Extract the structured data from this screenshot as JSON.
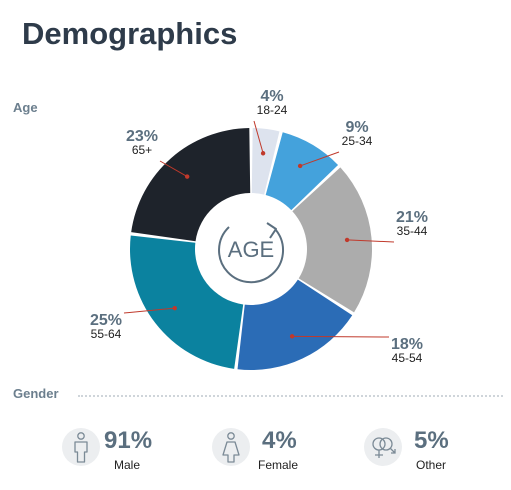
{
  "title": "Demographics",
  "age_section_label": "Age",
  "gender_section_label": "Gender",
  "center_label": "AGE",
  "chart_data": {
    "type": "pie",
    "donut": true,
    "categories": [
      "18-24",
      "25-34",
      "35-44",
      "45-54",
      "55-64",
      "65+"
    ],
    "values": [
      4,
      9,
      21,
      18,
      25,
      23
    ],
    "labels": [
      "4%",
      "9%",
      "21%",
      "18%",
      "25%",
      "23%"
    ],
    "colors": [
      "#dde3ee",
      "#44a2dc",
      "#acacac",
      "#2b6cb6",
      "#0b829f",
      "#1e232b"
    ],
    "leader_color": "#c0392b"
  },
  "gender": [
    {
      "percent": "91%",
      "label": "Male",
      "icon": "male-icon"
    },
    {
      "percent": "4%",
      "label": "Female",
      "icon": "female-icon"
    },
    {
      "percent": "5%",
      "label": "Other",
      "icon": "gender-other-icon"
    }
  ],
  "colors": {
    "title": "#2e3b4a",
    "muted": "#6c7f8e",
    "percent": "#5b6f7f",
    "icon_bg": "#eceef0"
  }
}
